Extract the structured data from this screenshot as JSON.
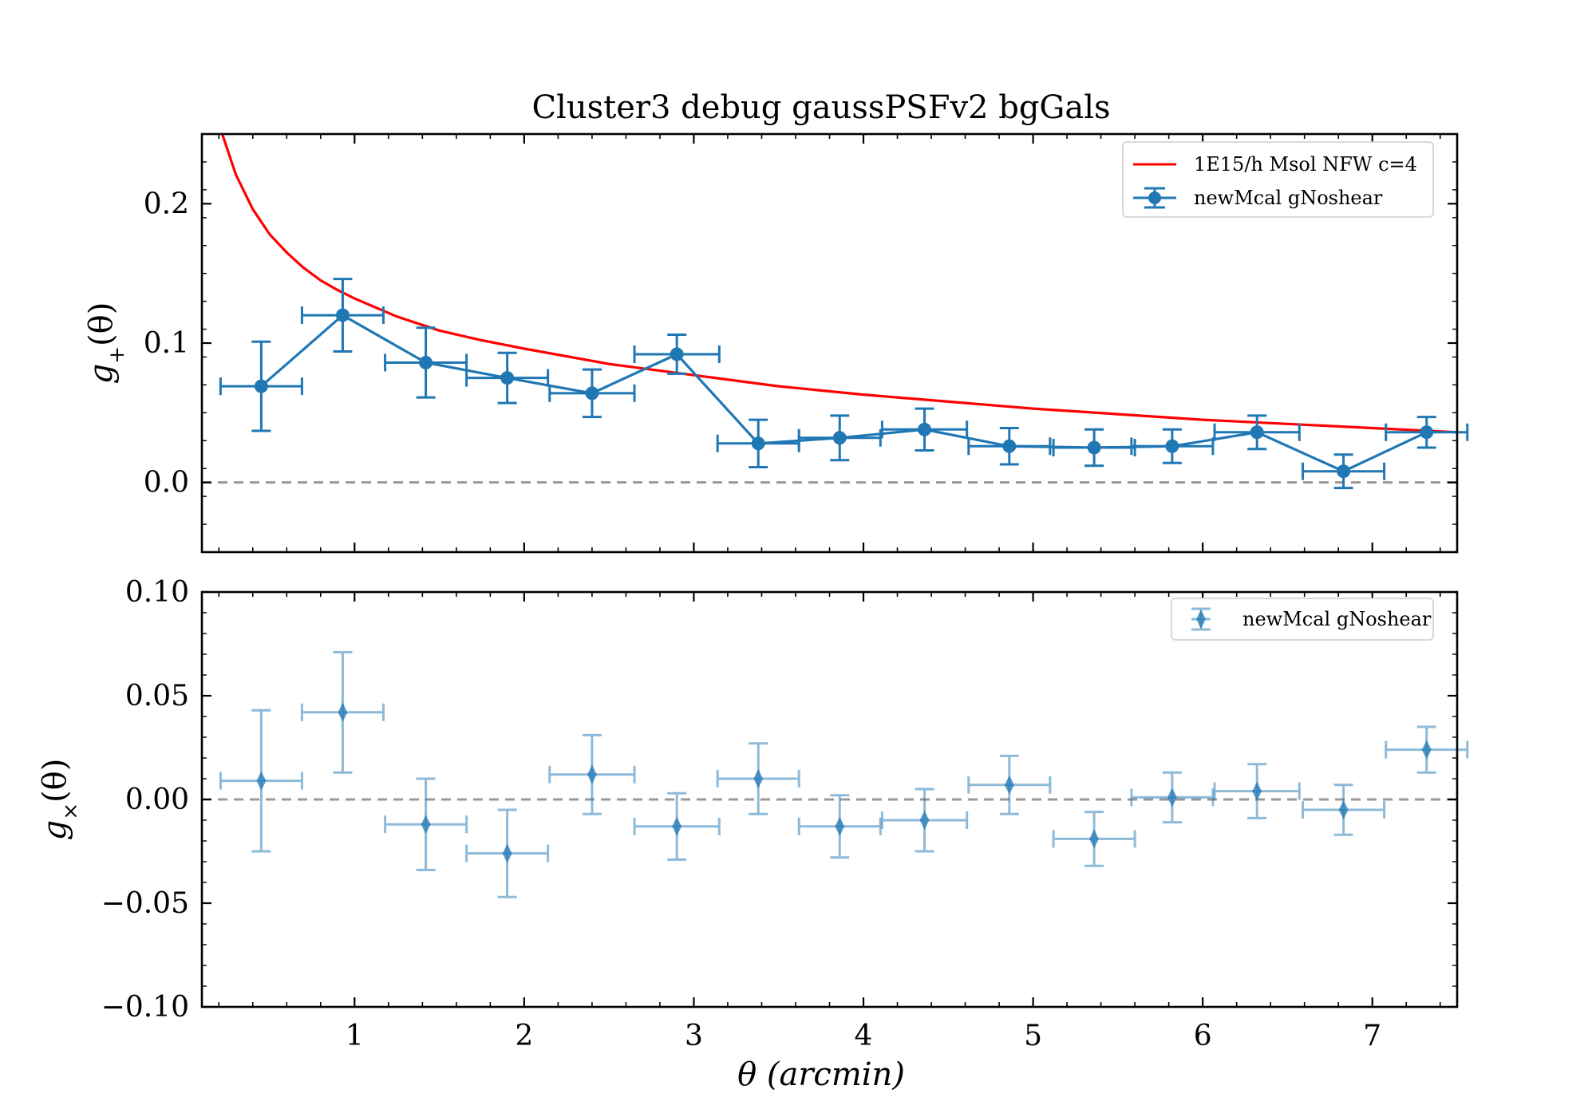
{
  "figure": {
    "title": "Cluster3 debug gaussPSFv2 bgGals",
    "xlabel": "θ (arcmin)",
    "colors": {
      "blue": "#1f77b4",
      "red": "#ff0000",
      "zero_line": "#999999"
    }
  },
  "chart_data": [
    {
      "type": "line",
      "panel": "top",
      "ylabel_main": "g",
      "ylabel_sub": "+",
      "ylabel_tail": "(θ)",
      "xlim": [
        0.1,
        7.5
      ],
      "ylim": [
        -0.05,
        0.25
      ],
      "xticks": [
        1,
        2,
        3,
        4,
        5,
        6,
        7
      ],
      "yticks": [
        0.0,
        0.1,
        0.2
      ],
      "ytick_labels": [
        "0.0",
        "0.1",
        "0.2"
      ],
      "grid": false,
      "legend_position": "upper right",
      "model": {
        "name": "1E15/h Msol NFW c=4",
        "color": "#ff0000",
        "x": [
          0.22,
          0.3,
          0.4,
          0.5,
          0.6,
          0.7,
          0.8,
          0.9,
          1.0,
          1.25,
          1.5,
          1.75,
          2.0,
          2.5,
          3.0,
          3.5,
          4.0,
          4.5,
          5.0,
          5.5,
          6.0,
          6.5,
          7.0,
          7.5
        ],
        "y": [
          0.25,
          0.221,
          0.196,
          0.178,
          0.165,
          0.154,
          0.145,
          0.138,
          0.132,
          0.119,
          0.109,
          0.102,
          0.096,
          0.085,
          0.077,
          0.069,
          0.063,
          0.058,
          0.053,
          0.049,
          0.045,
          0.042,
          0.039,
          0.036
        ]
      },
      "series": [
        {
          "name": "newMcal gNoshear",
          "color": "#1f77b4",
          "marker": "circle",
          "x": [
            0.45,
            0.93,
            1.42,
            1.9,
            2.4,
            2.9,
            3.38,
            3.86,
            4.36,
            4.86,
            5.36,
            5.82,
            6.32,
            6.83,
            7.32
          ],
          "y": [
            0.069,
            0.12,
            0.086,
            0.075,
            0.064,
            0.092,
            0.028,
            0.032,
            0.038,
            0.026,
            0.025,
            0.026,
            0.036,
            0.008,
            0.036
          ],
          "xerr": [
            0.24,
            0.24,
            0.24,
            0.24,
            0.25,
            0.25,
            0.24,
            0.24,
            0.25,
            0.24,
            0.24,
            0.24,
            0.25,
            0.24,
            0.24
          ],
          "yerr": [
            0.032,
            0.026,
            0.025,
            0.018,
            0.017,
            0.014,
            0.017,
            0.016,
            0.015,
            0.013,
            0.013,
            0.012,
            0.012,
            0.012,
            0.011
          ]
        }
      ]
    },
    {
      "type": "scatter",
      "panel": "bottom",
      "ylabel_main": "g",
      "ylabel_sub": "×",
      "ylabel_tail": "(θ)",
      "xlim": [
        0.1,
        7.5
      ],
      "ylim": [
        -0.1,
        0.1
      ],
      "xticks": [
        1,
        2,
        3,
        4,
        5,
        6,
        7
      ],
      "xtick_labels": [
        "1",
        "2",
        "3",
        "4",
        "5",
        "6",
        "7"
      ],
      "yticks": [
        -0.1,
        -0.05,
        0.0,
        0.05,
        0.1
      ],
      "ytick_labels": [
        "−0.10",
        "−0.05",
        "0.00",
        "0.05",
        "0.10"
      ],
      "grid": false,
      "legend_position": "upper right",
      "series": [
        {
          "name": "newMcal gNoshear",
          "color": "#1f77b4",
          "marker": "diamond",
          "x": [
            0.45,
            0.93,
            1.42,
            1.9,
            2.4,
            2.9,
            3.38,
            3.86,
            4.36,
            4.86,
            5.36,
            5.82,
            6.32,
            6.83,
            7.32
          ],
          "y": [
            0.009,
            0.042,
            -0.012,
            -0.026,
            0.012,
            -0.013,
            0.01,
            -0.013,
            -0.01,
            0.007,
            -0.019,
            0.001,
            0.004,
            -0.005,
            0.024
          ],
          "xerr": [
            0.24,
            0.24,
            0.24,
            0.24,
            0.25,
            0.25,
            0.24,
            0.24,
            0.25,
            0.24,
            0.24,
            0.24,
            0.25,
            0.24,
            0.24
          ],
          "yerr": [
            0.034,
            0.029,
            0.022,
            0.021,
            0.019,
            0.016,
            0.017,
            0.015,
            0.015,
            0.014,
            0.013,
            0.012,
            0.013,
            0.012,
            0.011
          ]
        }
      ]
    }
  ]
}
